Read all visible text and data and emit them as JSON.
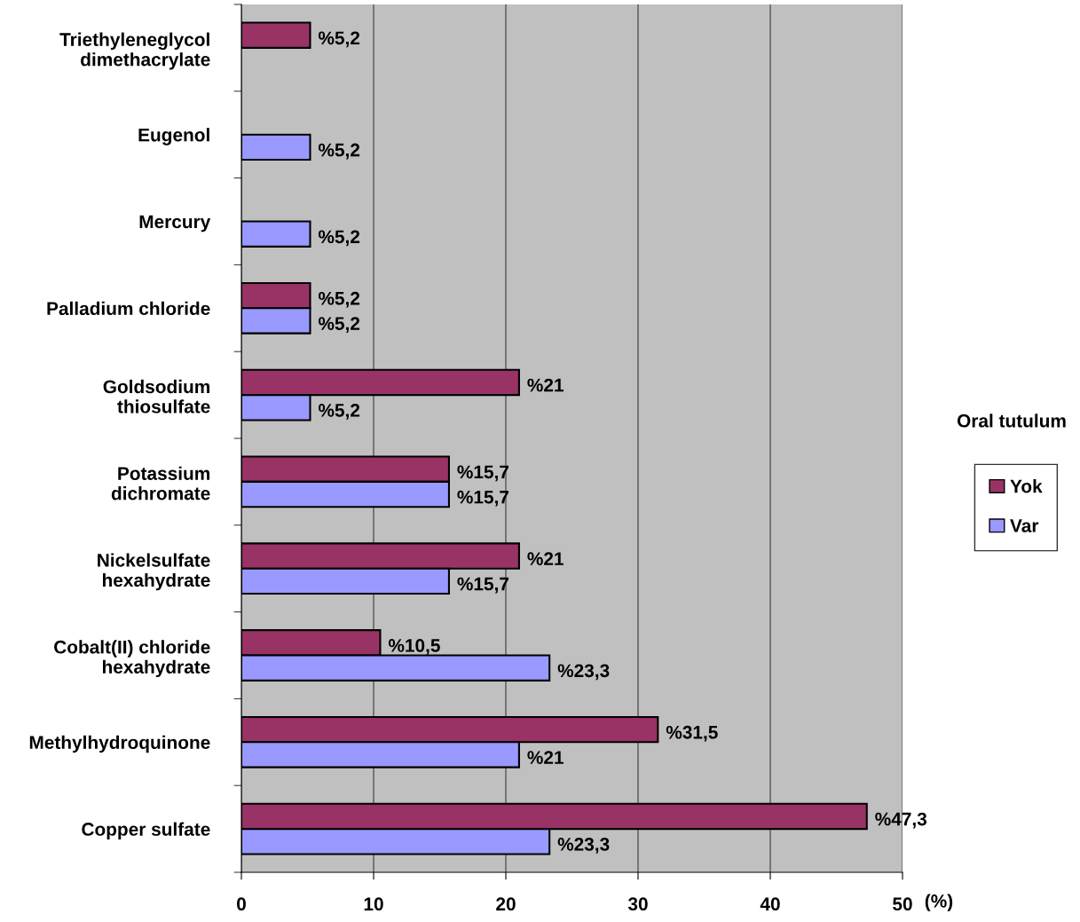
{
  "chart_data": {
    "type": "bar",
    "orientation": "horizontal",
    "xlabel": "(%)",
    "legend_title": "Oral tutulum",
    "legend": "right",
    "grid": "x",
    "categories": [
      "Triethyleneglycol\ndimethacrylate",
      "Eugenol",
      "Mercury",
      "Palladium chloride",
      "Goldsodium\nthiosulfate",
      "Potassium\ndichromate",
      "Nickelsulfate\nhexahydrate",
      "Cobalt(II) chloride\nhexahydrate",
      "Methylhydroquinone",
      "Copper sulfate"
    ],
    "series": [
      {
        "name": "Yok",
        "color": "#993366",
        "values": [
          5.2,
          null,
          null,
          5.2,
          21,
          15.7,
          21,
          10.5,
          31.5,
          47.3
        ],
        "value_labels": [
          "%5,2",
          null,
          null,
          "%5,2",
          "%21",
          "%15,7",
          "%21",
          "%10,5",
          "%31,5",
          "%47,3"
        ]
      },
      {
        "name": "Var",
        "color": "#9999ff",
        "values": [
          null,
          5.2,
          5.2,
          5.2,
          5.2,
          15.7,
          15.7,
          23.3,
          21,
          23.3
        ],
        "value_labels": [
          null,
          "%5,2",
          "%5,2",
          "%5,2",
          "%5,2",
          "%15,7",
          "%15,7",
          "%23,3",
          "%21",
          "%23,3"
        ]
      }
    ],
    "xlim": [
      0,
      50
    ],
    "xticks": [
      0,
      10,
      20,
      30,
      40,
      50
    ]
  }
}
